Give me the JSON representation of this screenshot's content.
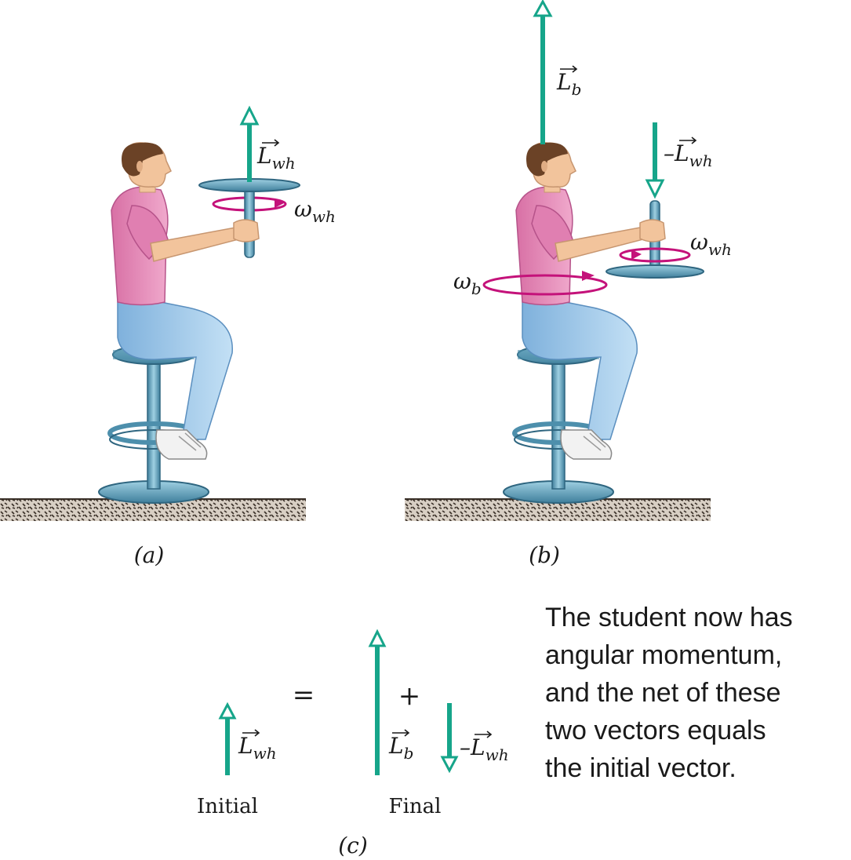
{
  "labels": {
    "L_wh_a": {
      "main": "L",
      "sub": "wh"
    },
    "omega_wh_a": {
      "main": "ω",
      "sub": "wh"
    },
    "L_b": {
      "main": "L",
      "sub": "b"
    },
    "neg_L_wh_b": {
      "minus": "–",
      "main": "L",
      "sub": "wh"
    },
    "omega_wh_b": {
      "main": "ω",
      "sub": "wh"
    },
    "omega_b": {
      "main": "ω",
      "sub": "b"
    },
    "L_wh_c": {
      "main": "L",
      "sub": "wh"
    },
    "L_b_c": {
      "main": "L",
      "sub": "b"
    },
    "neg_L_wh_c": {
      "minus": "–",
      "main": "L",
      "sub": "wh"
    }
  },
  "panels": {
    "a": "(a)",
    "b": "(b)",
    "c": "(c)"
  },
  "equation": {
    "equals": "=",
    "plus": "+",
    "initial": "Initial",
    "final": "Final"
  },
  "note": [
    "The student now has",
    "angular momentum,",
    "and the net of these",
    "two vectors equals",
    "the initial vector."
  ],
  "colors": {
    "vector": "#16a58a",
    "rotation": "#c4127a",
    "shirt": "#e58bb8",
    "pants": "#9cc6ea",
    "stool": "#5f9bb5",
    "skin": "#f2c49c",
    "hair": "#6b4226",
    "ground": "#d8cfc4"
  }
}
